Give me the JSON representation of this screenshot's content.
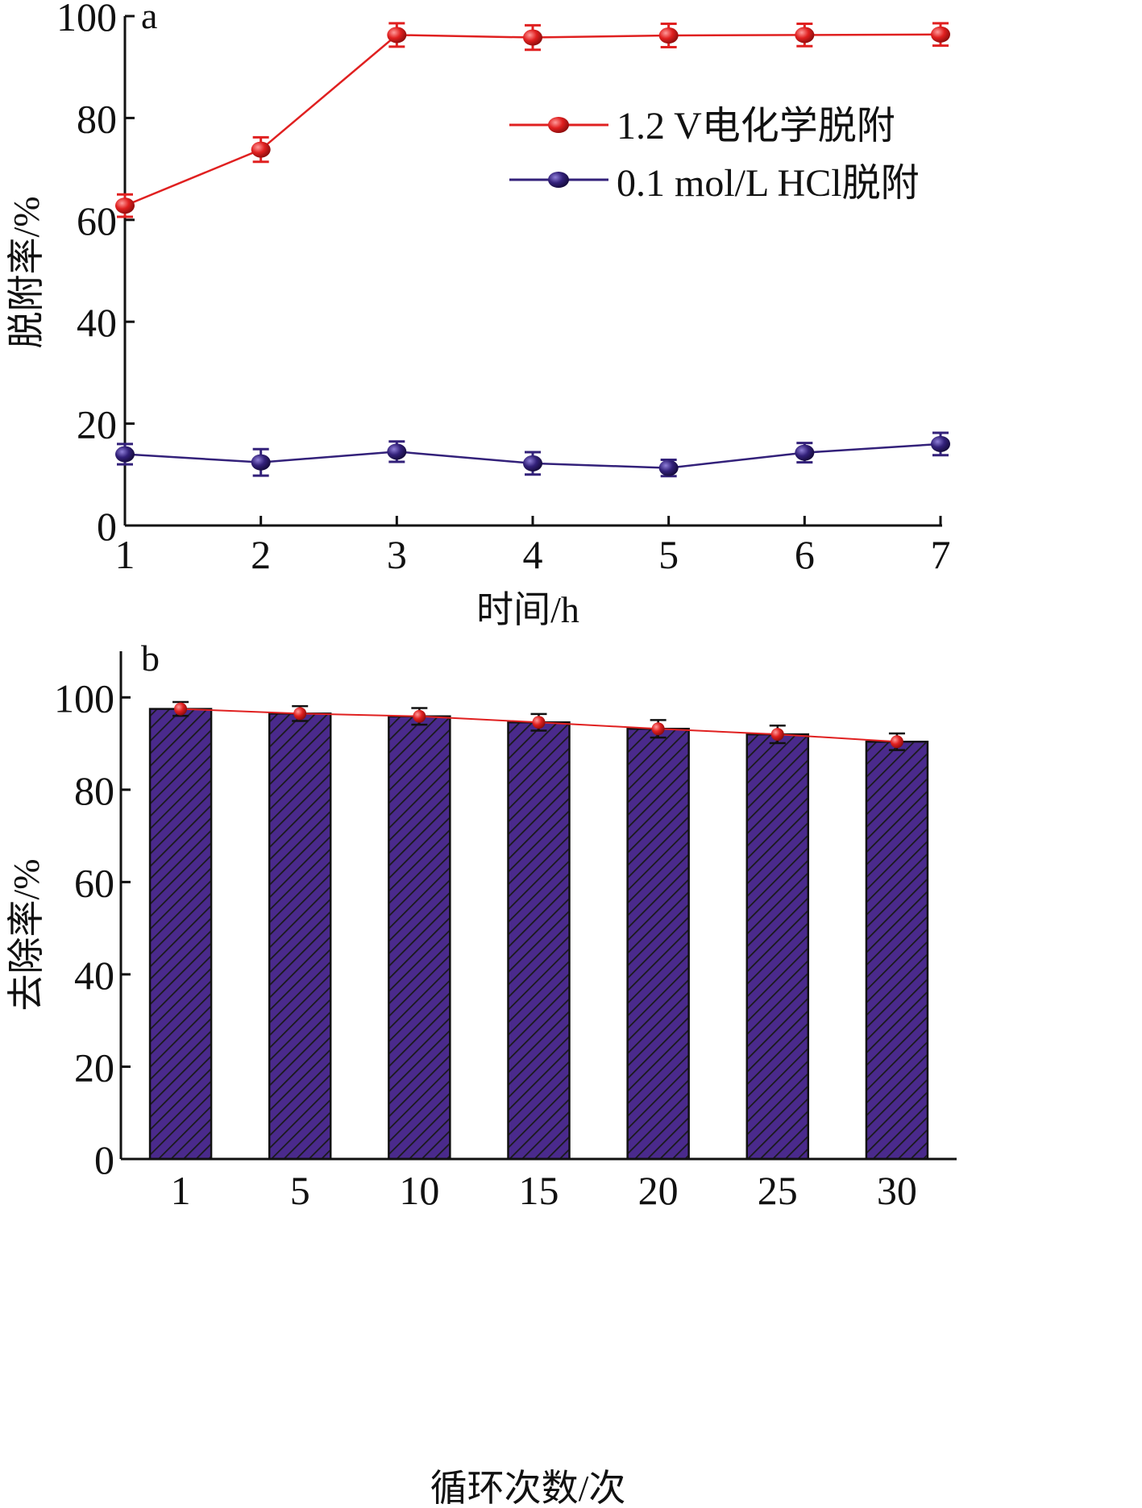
{
  "colors": {
    "series_a": "#e02020",
    "series_b": "#33217a",
    "bar_fill": "#4a2a8c",
    "bar_hatch": "#1a1a1a",
    "axis": "#111111",
    "trend_line": "#e02020"
  },
  "chart_data": [
    {
      "panel_label": "a",
      "type": "line",
      "xlabel": "时间/h",
      "ylabel": "脱附率/%",
      "x": [
        1,
        2,
        3,
        4,
        5,
        6,
        7
      ],
      "xlim": [
        1,
        7
      ],
      "ylim": [
        0,
        100
      ],
      "yticks": [
        0,
        20,
        40,
        60,
        80,
        100
      ],
      "grid": false,
      "legend_position": "top-right",
      "series": [
        {
          "name": "1.2 V电化学脱附",
          "color": "#e02020",
          "values": [
            62.8,
            73.8,
            96.3,
            95.8,
            96.2,
            96.3,
            96.4
          ],
          "errors": [
            2.2,
            2.4,
            2.3,
            2.4,
            2.3,
            2.2,
            2.2
          ]
        },
        {
          "name": "0.1 mol/L HCl脱附",
          "color": "#33217a",
          "values": [
            14.0,
            12.4,
            14.5,
            12.2,
            11.3,
            14.3,
            16.0
          ],
          "errors": [
            2.0,
            2.6,
            2.0,
            2.2,
            1.6,
            1.9,
            2.2
          ]
        }
      ]
    },
    {
      "panel_label": "b",
      "type": "bar",
      "xlabel": "循环次数/次",
      "ylabel": "去除率/%",
      "categories": [
        "1",
        "5",
        "10",
        "15",
        "20",
        "25",
        "30"
      ],
      "ylim": [
        0,
        110
      ],
      "yticks": [
        0,
        20,
        40,
        60,
        80,
        100
      ],
      "grid": false,
      "values": [
        97.5,
        96.5,
        95.9,
        94.6,
        93.2,
        92.0,
        90.4
      ],
      "errors": [
        1.5,
        1.6,
        1.8,
        1.8,
        1.9,
        1.9,
        1.8
      ],
      "overlay": "line-with-markers"
    }
  ]
}
